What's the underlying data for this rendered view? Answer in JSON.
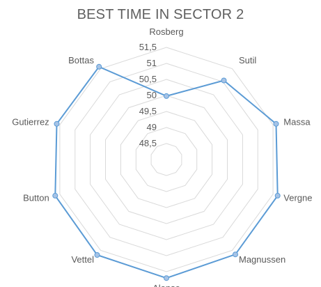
{
  "chart_data": {
    "type": "radar",
    "title": "BEST TIME IN SECTOR 2",
    "categories": [
      "Rosberg",
      "Sutil",
      "Massa",
      "Vergne",
      "Magnussen",
      "Alonso",
      "Vettel",
      "Button",
      "Gutierrez",
      "Bottas"
    ],
    "series": [
      {
        "values": [
          49.98,
          51.05,
          51.6,
          51.65,
          51.66,
          51.7,
          51.68,
          51.65,
          51.6,
          51.58
        ]
      }
    ],
    "rmin": 48,
    "rmax": 51.5,
    "ticks": [
      48.5,
      49,
      49.5,
      50,
      50.5,
      51,
      51.5
    ],
    "tick_labels": [
      "48,5",
      "49",
      "49,5",
      "50",
      "50,5",
      "51",
      "51,5"
    ],
    "grid": true,
    "legend": "none",
    "colors": {
      "series": "#5b9bd5",
      "marker_fill": "#a6c3e6",
      "grid": "#d9d9d9",
      "label": "#595959",
      "tick": "#595959"
    }
  }
}
